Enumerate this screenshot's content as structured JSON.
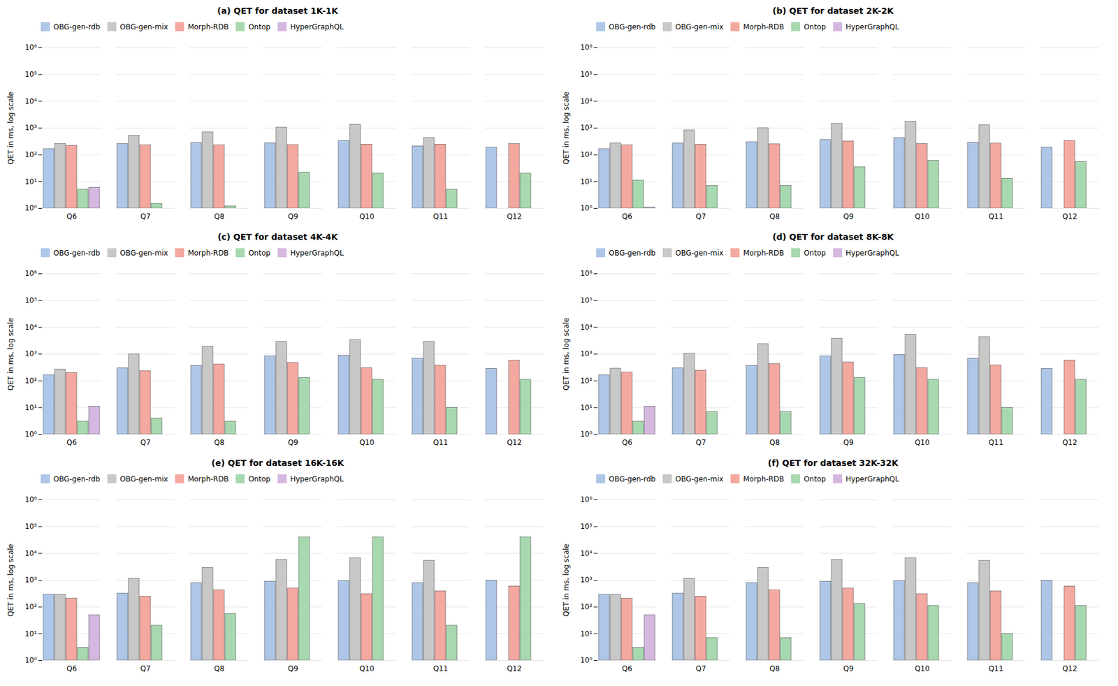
{
  "chart_data": [
    {
      "type": "bar",
      "title": "(a) QET for dataset 1K-1K",
      "ylabel": "QET in ms, log scale",
      "categories": [
        "Q6",
        "Q7",
        "Q8",
        "Q9",
        "Q10",
        "Q11",
        "Q12"
      ],
      "series": [
        {
          "name": "OBG-gen-rdb",
          "color": "#aec6e8",
          "values": [
            165,
            260,
            280,
            275,
            330,
            210,
            190
          ]
        },
        {
          "name": "OBG-gen-mix",
          "color": "#c8c8c8",
          "values": [
            260,
            520,
            700,
            1050,
            1350,
            430,
            null
          ]
        },
        {
          "name": "Morph-RDB",
          "color": "#f4a9a0",
          "values": [
            220,
            230,
            230,
            235,
            245,
            245,
            255
          ]
        },
        {
          "name": "Ontop",
          "color": "#a8d8b0",
          "values": [
            5,
            1.5,
            1.2,
            22,
            20,
            5,
            20
          ]
        },
        {
          "name": "HyperGraphQL",
          "color": "#d4b8e0",
          "values": [
            6,
            null,
            null,
            null,
            null,
            null,
            null
          ]
        }
      ],
      "log": "y",
      "ylim": [
        1,
        1000000
      ],
      "yticks": [
        {
          "value": 1,
          "label": "10⁰"
        },
        {
          "value": 10,
          "label": "10¹"
        },
        {
          "value": 100,
          "label": "10²"
        },
        {
          "value": 1000,
          "label": "10³"
        },
        {
          "value": 10000,
          "label": "10⁴"
        },
        {
          "value": 100000,
          "label": "10⁵"
        },
        {
          "value": 1000000,
          "label": "10⁶"
        }
      ],
      "grid": true,
      "legend": "upper left"
    },
    {
      "type": "bar",
      "title": "(b) QET for dataset 2K-2K",
      "ylabel": "QET in ms, log scale",
      "categories": [
        "Q6",
        "Q7",
        "Q8",
        "Q9",
        "Q10",
        "Q11",
        "Q12"
      ],
      "series": [
        {
          "name": "OBG-gen-rdb",
          "color": "#aec6e8",
          "values": [
            165,
            270,
            295,
            360,
            430,
            285,
            190
          ]
        },
        {
          "name": "OBG-gen-mix",
          "color": "#c8c8c8",
          "values": [
            270,
            820,
            1000,
            1450,
            1750,
            1300,
            null
          ]
        },
        {
          "name": "Morph-RDB",
          "color": "#f4a9a0",
          "values": [
            230,
            240,
            250,
            320,
            255,
            265,
            335
          ]
        },
        {
          "name": "Ontop",
          "color": "#a8d8b0",
          "values": [
            11,
            7,
            7,
            35,
            60,
            13,
            55
          ]
        },
        {
          "name": "HyperGraphQL",
          "color": "#d4b8e0",
          "values": [
            1.1,
            null,
            null,
            null,
            null,
            null,
            null
          ]
        }
      ],
      "log": "y",
      "ylim": [
        1,
        1000000
      ],
      "yticks": [
        {
          "value": 1,
          "label": "10⁰"
        },
        {
          "value": 10,
          "label": "10¹"
        },
        {
          "value": 100,
          "label": "10²"
        },
        {
          "value": 1000,
          "label": "10³"
        },
        {
          "value": 10000,
          "label": "10⁴"
        },
        {
          "value": 100000,
          "label": "10⁵"
        },
        {
          "value": 1000000,
          "label": "10⁶"
        }
      ],
      "grid": true,
      "legend": "upper left"
    },
    {
      "type": "bar",
      "title": "(c) QET for dataset 4K-4K",
      "ylabel": "QET in ms, log scale",
      "categories": [
        "Q6",
        "Q7",
        "Q8",
        "Q9",
        "Q10",
        "Q11",
        "Q12"
      ],
      "series": [
        {
          "name": "OBG-gen-rdb",
          "color": "#aec6e8",
          "values": [
            165,
            300,
            370,
            840,
            890,
            690,
            285
          ]
        },
        {
          "name": "OBG-gen-mix",
          "color": "#c8c8c8",
          "values": [
            270,
            1000,
            1900,
            2900,
            3400,
            2900,
            null
          ]
        },
        {
          "name": "Morph-RDB",
          "color": "#f4a9a0",
          "values": [
            200,
            235,
            415,
            470,
            305,
            375,
            580
          ]
        },
        {
          "name": "Ontop",
          "color": "#a8d8b0",
          "values": [
            3,
            4,
            3,
            130,
            110,
            10,
            110
          ]
        },
        {
          "name": "HyperGraphQL",
          "color": "#d4b8e0",
          "values": [
            11,
            null,
            null,
            null,
            null,
            null,
            null
          ]
        }
      ],
      "log": "y",
      "ylim": [
        1,
        1000000
      ],
      "yticks": [
        {
          "value": 1,
          "label": "10⁰"
        },
        {
          "value": 10,
          "label": "10¹"
        },
        {
          "value": 100,
          "label": "10²"
        },
        {
          "value": 1000,
          "label": "10³"
        },
        {
          "value": 10000,
          "label": "10⁴"
        },
        {
          "value": 100000,
          "label": "10⁵"
        },
        {
          "value": 1000000,
          "label": "10⁶"
        }
      ],
      "grid": true,
      "legend": "upper left"
    },
    {
      "type": "bar",
      "title": "(d) QET for dataset 8K-8K",
      "ylabel": "QET in ms, log scale",
      "categories": [
        "Q6",
        "Q7",
        "Q8",
        "Q9",
        "Q10",
        "Q11",
        "Q12"
      ],
      "series": [
        {
          "name": "OBG-gen-rdb",
          "color": "#aec6e8",
          "values": [
            165,
            300,
            370,
            840,
            930,
            690,
            285
          ]
        },
        {
          "name": "OBG-gen-mix",
          "color": "#c8c8c8",
          "values": [
            290,
            1050,
            2400,
            3800,
            5300,
            4300,
            null
          ]
        },
        {
          "name": "Morph-RDB",
          "color": "#f4a9a0",
          "values": [
            205,
            245,
            425,
            490,
            305,
            385,
            590
          ]
        },
        {
          "name": "Ontop",
          "color": "#a8d8b0",
          "values": [
            3,
            7,
            7,
            130,
            110,
            10,
            110
          ]
        },
        {
          "name": "HyperGraphQL",
          "color": "#d4b8e0",
          "values": [
            11,
            null,
            null,
            null,
            null,
            null,
            null
          ]
        }
      ],
      "log": "y",
      "ylim": [
        1,
        1000000
      ],
      "yticks": [
        {
          "value": 1,
          "label": "10⁰"
        },
        {
          "value": 10,
          "label": "10¹"
        },
        {
          "value": 100,
          "label": "10²"
        },
        {
          "value": 1000,
          "label": "10³"
        },
        {
          "value": 10000,
          "label": "10⁴"
        },
        {
          "value": 100000,
          "label": "10⁵"
        },
        {
          "value": 1000000,
          "label": "10⁶"
        }
      ],
      "grid": true,
      "legend": "upper left"
    },
    {
      "type": "bar",
      "title": "(e) QET for dataset 16K-16K",
      "ylabel": "QET in ms, log scale",
      "categories": [
        "Q6",
        "Q7",
        "Q8",
        "Q9",
        "Q10",
        "Q11",
        "Q12"
      ],
      "series": [
        {
          "name": "OBG-gen-rdb",
          "color": "#aec6e8",
          "values": [
            290,
            320,
            780,
            880,
            930,
            780,
            980
          ]
        },
        {
          "name": "OBG-gen-mix",
          "color": "#c8c8c8",
          "values": [
            290,
            1150,
            2900,
            5800,
            6700,
            5300,
            null
          ]
        },
        {
          "name": "Morph-RDB",
          "color": "#f4a9a0",
          "values": [
            205,
            245,
            425,
            490,
            305,
            385,
            590
          ]
        },
        {
          "name": "Ontop",
          "color": "#a8d8b0",
          "values": [
            3,
            20,
            55,
            40000,
            40000,
            20,
            40000
          ]
        },
        {
          "name": "HyperGraphQL",
          "color": "#d4b8e0",
          "values": [
            50,
            null,
            null,
            null,
            null,
            null,
            null
          ]
        }
      ],
      "log": "y",
      "ylim": [
        1,
        1000000
      ],
      "yticks": [
        {
          "value": 1,
          "label": "10⁰"
        },
        {
          "value": 10,
          "label": "10¹"
        },
        {
          "value": 100,
          "label": "10²"
        },
        {
          "value": 1000,
          "label": "10³"
        },
        {
          "value": 10000,
          "label": "10⁴"
        },
        {
          "value": 100000,
          "label": "10⁵"
        },
        {
          "value": 1000000,
          "label": "10⁶"
        }
      ],
      "grid": true,
      "legend": "upper left"
    },
    {
      "type": "bar",
      "title": "(f) QET for dataset 32K-32K",
      "ylabel": "QET in ms, log scale",
      "categories": [
        "Q6",
        "Q7",
        "Q8",
        "Q9",
        "Q10",
        "Q11",
        "Q12"
      ],
      "series": [
        {
          "name": "OBG-gen-rdb",
          "color": "#aec6e8",
          "values": [
            290,
            320,
            780,
            880,
            930,
            780,
            980
          ]
        },
        {
          "name": "OBG-gen-mix",
          "color": "#c8c8c8",
          "values": [
            290,
            1150,
            2900,
            5800,
            6700,
            5300,
            null
          ]
        },
        {
          "name": "Morph-RDB",
          "color": "#f4a9a0",
          "values": [
            205,
            245,
            425,
            490,
            305,
            385,
            590
          ]
        },
        {
          "name": "Ontop",
          "color": "#a8d8b0",
          "values": [
            3,
            7,
            7,
            130,
            110,
            10,
            110
          ]
        },
        {
          "name": "HyperGraphQL",
          "color": "#d4b8e0",
          "values": [
            50,
            null,
            null,
            null,
            null,
            null,
            null
          ]
        }
      ],
      "log": "y",
      "ylim": [
        1,
        1000000
      ],
      "yticks": [
        {
          "value": 1,
          "label": "10⁰"
        },
        {
          "value": 10,
          "label": "10¹"
        },
        {
          "value": 100,
          "label": "10²"
        },
        {
          "value": 1000,
          "label": "10³"
        },
        {
          "value": 10000,
          "label": "10⁴"
        },
        {
          "value": 100000,
          "label": "10⁵"
        },
        {
          "value": 1000000,
          "label": "10⁶"
        }
      ],
      "grid": true,
      "legend": "upper left"
    }
  ]
}
